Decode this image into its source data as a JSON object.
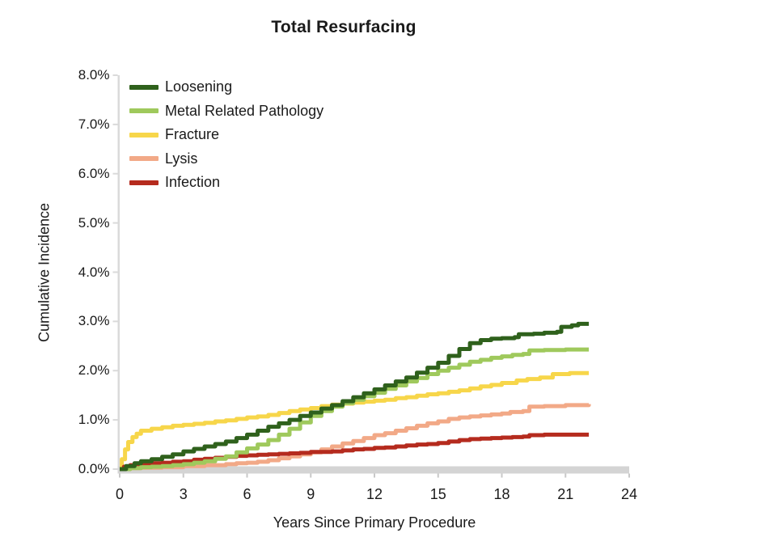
{
  "chart_data": {
    "type": "line",
    "subtype": "step-after-cumulative-incidence",
    "title": "Total Resurfacing",
    "xlabel": "Years Since Primary Procedure",
    "ylabel": "Cumulative Incidence",
    "xlim": [
      0,
      24
    ],
    "ylim_percent": [
      0,
      8
    ],
    "x_ticks": [
      0,
      3,
      6,
      9,
      12,
      15,
      18,
      21,
      24
    ],
    "y_ticks": [
      {
        "value": 8,
        "label": "8.0%"
      },
      {
        "value": 7,
        "label": "7.0%"
      },
      {
        "value": 6,
        "label": "6.0%"
      },
      {
        "value": 5,
        "label": "5.0%"
      },
      {
        "value": 4,
        "label": "4.0%"
      },
      {
        "value": 3,
        "label": "3.0%"
      },
      {
        "value": 2,
        "label": "2.0%"
      },
      {
        "value": 1,
        "label": "1.0%"
      },
      {
        "value": 0,
        "label": "0.0%"
      }
    ],
    "grid": false,
    "legend_position": "inside-top-left",
    "draw_order": [
      "Fracture",
      "Lysis",
      "Infection",
      "Metal Related Pathology",
      "Loosening"
    ],
    "series": [
      {
        "name": "Loosening",
        "color": "#2f611c",
        "points": [
          [
            0,
            0
          ],
          [
            0.3,
            0.06
          ],
          [
            0.7,
            0.12
          ],
          [
            1,
            0.16
          ],
          [
            1.5,
            0.2
          ],
          [
            2,
            0.25
          ],
          [
            2.5,
            0.3
          ],
          [
            3,
            0.36
          ],
          [
            3.5,
            0.41
          ],
          [
            4,
            0.46
          ],
          [
            4.5,
            0.51
          ],
          [
            5,
            0.56
          ],
          [
            5.5,
            0.63
          ],
          [
            6,
            0.7
          ],
          [
            6.5,
            0.78
          ],
          [
            7,
            0.86
          ],
          [
            7.5,
            0.93
          ],
          [
            8,
            1.0
          ],
          [
            8.5,
            1.08
          ],
          [
            9,
            1.15
          ],
          [
            9.5,
            1.23
          ],
          [
            10,
            1.3
          ],
          [
            10.5,
            1.38
          ],
          [
            11,
            1.46
          ],
          [
            11.5,
            1.54
          ],
          [
            12,
            1.62
          ],
          [
            12.5,
            1.7
          ],
          [
            13,
            1.78
          ],
          [
            13.5,
            1.86
          ],
          [
            14,
            1.96
          ],
          [
            14.5,
            2.06
          ],
          [
            15,
            2.16
          ],
          [
            15.5,
            2.3
          ],
          [
            16,
            2.44
          ],
          [
            16.5,
            2.56
          ],
          [
            17,
            2.62
          ],
          [
            17.5,
            2.65
          ],
          [
            18,
            2.66
          ],
          [
            18.6,
            2.68
          ],
          [
            18.8,
            2.74
          ],
          [
            19.5,
            2.75
          ],
          [
            20,
            2.77
          ],
          [
            20.6,
            2.79
          ],
          [
            20.8,
            2.89
          ],
          [
            21.3,
            2.92
          ],
          [
            21.6,
            2.95
          ],
          [
            22.1,
            2.95
          ]
        ]
      },
      {
        "name": "Metal Related Pathology",
        "color": "#9fc95c",
        "points": [
          [
            0,
            0
          ],
          [
            0.5,
            0.02
          ],
          [
            1,
            0.04
          ],
          [
            1.5,
            0.05
          ],
          [
            2,
            0.06
          ],
          [
            2.5,
            0.08
          ],
          [
            3,
            0.1
          ],
          [
            3.5,
            0.13
          ],
          [
            4,
            0.16
          ],
          [
            4.5,
            0.21
          ],
          [
            5,
            0.26
          ],
          [
            5.5,
            0.34
          ],
          [
            6,
            0.42
          ],
          [
            6.5,
            0.5
          ],
          [
            7,
            0.59
          ],
          [
            7.5,
            0.7
          ],
          [
            8,
            0.82
          ],
          [
            8.5,
            0.95
          ],
          [
            9,
            1.08
          ],
          [
            9.5,
            1.18
          ],
          [
            10,
            1.27
          ],
          [
            10.5,
            1.34
          ],
          [
            11,
            1.41
          ],
          [
            11.5,
            1.48
          ],
          [
            12,
            1.55
          ],
          [
            12.5,
            1.63
          ],
          [
            13,
            1.7
          ],
          [
            13.5,
            1.78
          ],
          [
            14,
            1.85
          ],
          [
            14.5,
            1.93
          ],
          [
            15,
            2.0
          ],
          [
            15.5,
            2.06
          ],
          [
            16,
            2.12
          ],
          [
            16.5,
            2.18
          ],
          [
            17,
            2.22
          ],
          [
            17.5,
            2.26
          ],
          [
            18,
            2.29
          ],
          [
            18.5,
            2.32
          ],
          [
            19,
            2.34
          ],
          [
            19.3,
            2.41
          ],
          [
            20,
            2.42
          ],
          [
            21,
            2.43
          ],
          [
            22.1,
            2.43
          ]
        ]
      },
      {
        "name": "Fracture",
        "color": "#f7d64a",
        "points": [
          [
            0,
            0
          ],
          [
            0.1,
            0.2
          ],
          [
            0.25,
            0.4
          ],
          [
            0.4,
            0.55
          ],
          [
            0.6,
            0.65
          ],
          [
            0.8,
            0.72
          ],
          [
            1,
            0.78
          ],
          [
            1.5,
            0.82
          ],
          [
            2,
            0.85
          ],
          [
            2.5,
            0.88
          ],
          [
            3,
            0.9
          ],
          [
            3.5,
            0.92
          ],
          [
            4,
            0.94
          ],
          [
            4.5,
            0.97
          ],
          [
            5,
            0.99
          ],
          [
            5.5,
            1.02
          ],
          [
            6,
            1.05
          ],
          [
            6.5,
            1.07
          ],
          [
            7,
            1.1
          ],
          [
            7.5,
            1.14
          ],
          [
            8,
            1.18
          ],
          [
            8.5,
            1.21
          ],
          [
            9,
            1.24
          ],
          [
            9.5,
            1.28
          ],
          [
            10,
            1.31
          ],
          [
            10.5,
            1.33
          ],
          [
            11,
            1.35
          ],
          [
            11.5,
            1.37
          ],
          [
            12,
            1.39
          ],
          [
            12.5,
            1.41
          ],
          [
            13,
            1.44
          ],
          [
            13.5,
            1.46
          ],
          [
            14,
            1.49
          ],
          [
            14.5,
            1.52
          ],
          [
            15,
            1.54
          ],
          [
            15.5,
            1.57
          ],
          [
            16,
            1.6
          ],
          [
            16.5,
            1.64
          ],
          [
            17,
            1.68
          ],
          [
            17.5,
            1.71
          ],
          [
            18,
            1.75
          ],
          [
            18.7,
            1.8
          ],
          [
            19.2,
            1.83
          ],
          [
            19.8,
            1.86
          ],
          [
            20.4,
            1.93
          ],
          [
            21.2,
            1.95
          ],
          [
            22.1,
            1.95
          ]
        ]
      },
      {
        "name": "Lysis",
        "color": "#f2a987",
        "points": [
          [
            0,
            0
          ],
          [
            0.5,
            0.02
          ],
          [
            1,
            0.03
          ],
          [
            2,
            0.04
          ],
          [
            3,
            0.06
          ],
          [
            4,
            0.08
          ],
          [
            5,
            0.1
          ],
          [
            5.5,
            0.12
          ],
          [
            6,
            0.13
          ],
          [
            6.5,
            0.15
          ],
          [
            7,
            0.18
          ],
          [
            7.5,
            0.22
          ],
          [
            8,
            0.26
          ],
          [
            8.5,
            0.3
          ],
          [
            9,
            0.34
          ],
          [
            9.5,
            0.4
          ],
          [
            10,
            0.46
          ],
          [
            10.5,
            0.52
          ],
          [
            11,
            0.57
          ],
          [
            11.5,
            0.63
          ],
          [
            12,
            0.69
          ],
          [
            12.5,
            0.73
          ],
          [
            13,
            0.78
          ],
          [
            13.5,
            0.83
          ],
          [
            14,
            0.88
          ],
          [
            14.5,
            0.93
          ],
          [
            15,
            0.97
          ],
          [
            15.5,
            1.02
          ],
          [
            16,
            1.05
          ],
          [
            16.5,
            1.07
          ],
          [
            17,
            1.09
          ],
          [
            17.5,
            1.11
          ],
          [
            18,
            1.13
          ],
          [
            18.4,
            1.16
          ],
          [
            19,
            1.18
          ],
          [
            19.3,
            1.27
          ],
          [
            20,
            1.28
          ],
          [
            21,
            1.3
          ],
          [
            22.1,
            1.32
          ]
        ]
      },
      {
        "name": "Infection",
        "color": "#b52b1e",
        "points": [
          [
            0,
            0
          ],
          [
            0.2,
            0.05
          ],
          [
            0.5,
            0.08
          ],
          [
            1,
            0.1
          ],
          [
            1.5,
            0.12
          ],
          [
            2,
            0.13
          ],
          [
            2.5,
            0.15
          ],
          [
            3,
            0.16
          ],
          [
            3.5,
            0.19
          ],
          [
            4,
            0.21
          ],
          [
            4.5,
            0.23
          ],
          [
            5,
            0.25
          ],
          [
            5.5,
            0.27
          ],
          [
            6,
            0.28
          ],
          [
            6.5,
            0.29
          ],
          [
            7,
            0.3
          ],
          [
            7.5,
            0.31
          ],
          [
            8,
            0.32
          ],
          [
            8.5,
            0.33
          ],
          [
            9,
            0.35
          ],
          [
            10,
            0.36
          ],
          [
            10.5,
            0.38
          ],
          [
            11,
            0.4
          ],
          [
            11.5,
            0.41
          ],
          [
            12,
            0.43
          ],
          [
            12.5,
            0.44
          ],
          [
            13,
            0.46
          ],
          [
            13.5,
            0.48
          ],
          [
            14,
            0.5
          ],
          [
            14.5,
            0.51
          ],
          [
            15,
            0.53
          ],
          [
            15.5,
            0.56
          ],
          [
            16,
            0.59
          ],
          [
            16.5,
            0.61
          ],
          [
            17,
            0.62
          ],
          [
            17.5,
            0.63
          ],
          [
            18,
            0.64
          ],
          [
            18.5,
            0.65
          ],
          [
            19,
            0.66
          ],
          [
            19.3,
            0.69
          ],
          [
            20,
            0.7
          ],
          [
            22.1,
            0.7
          ]
        ]
      }
    ],
    "colors": {
      "axis_bar": "#d4d4d4",
      "axis_line": "#dadada",
      "tick_mark": "#c8c8c8",
      "text": "#1a1a1a"
    }
  }
}
